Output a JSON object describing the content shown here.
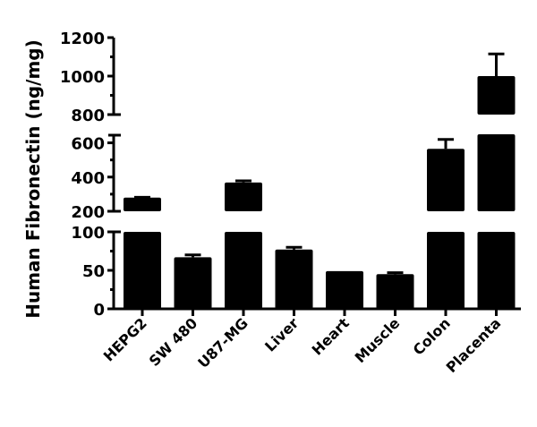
{
  "chart_data": {
    "type": "bar",
    "title": "",
    "xlabel": "",
    "ylabel": "Human Fibronectin (ng/mg)",
    "categories": [
      "HEPG2",
      "SW 480",
      "U87-MG",
      "Liver",
      "Heart",
      "Muscle",
      "Colon",
      "Placenta"
    ],
    "values": [
      280,
      67,
      368,
      77,
      49,
      45,
      565,
      1000
    ],
    "error_upper": [
      282,
      70,
      378,
      80,
      49,
      47,
      620,
      1115
    ],
    "ylim": [
      0,
      1200
    ],
    "axis_break": true,
    "y_segments": [
      {
        "range": [
          0,
          100
        ],
        "ticks": [
          0,
          50,
          100
        ],
        "tick_labels": [
          "0",
          "50",
          "100"
        ]
      },
      {
        "range": [
          200,
          650
        ],
        "ticks": [
          200,
          400,
          600
        ],
        "tick_labels": [
          "200",
          "400",
          "600"
        ]
      },
      {
        "range": [
          800,
          1200
        ],
        "ticks": [
          800,
          1000,
          1200
        ],
        "tick_labels": [
          "800",
          "1000",
          "1200"
        ]
      }
    ],
    "grid": false,
    "legend": null,
    "bar_color": "#000000"
  }
}
